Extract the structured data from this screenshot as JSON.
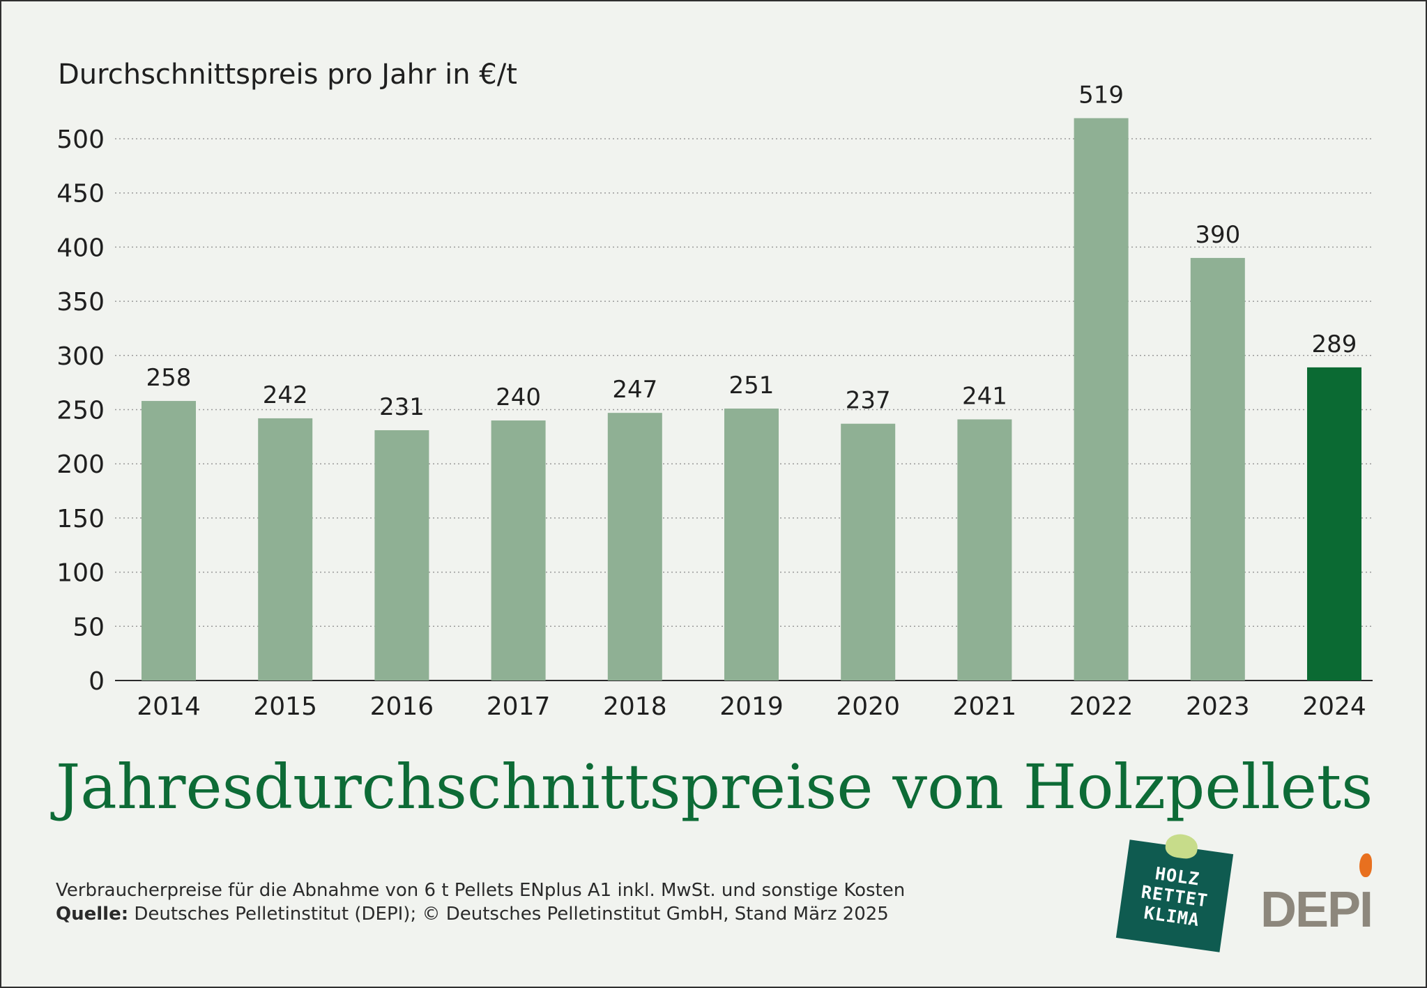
{
  "chart_data": {
    "type": "bar",
    "title": "Jahresdurchschnittspreise von Holzpellets",
    "ylabel": "Durchschnittspreis pro Jahr in €/t",
    "xlabel": "",
    "categories": [
      "2014",
      "2015",
      "2016",
      "2017",
      "2018",
      "2019",
      "2020",
      "2021",
      "2022",
      "2023",
      "2024"
    ],
    "values": [
      258,
      242,
      231,
      240,
      247,
      251,
      237,
      241,
      519,
      390,
      289
    ],
    "value_labels": [
      "258",
      "242",
      "231",
      "240",
      "247",
      "251",
      "237",
      "241",
      "519",
      "390",
      "289"
    ],
    "highlight_index": 10,
    "ylim": [
      0,
      520
    ],
    "yticks": [
      0,
      50,
      100,
      150,
      200,
      250,
      300,
      350,
      400,
      450,
      500
    ],
    "grid": "horizontal dotted",
    "colors": {
      "bar": "#8fb094",
      "highlight": "#0b6a33",
      "title": "#0d6b36"
    }
  },
  "footnote": "Verbraucherpreise für die Abnahme von 6 t Pellets ENplus A1 inkl. MwSt. und sonstige Kosten",
  "source": {
    "label": "Quelle:",
    "text": " Deutsches Pelletinstitut (DEPI); © Deutsches Pelletinstitut GmbH, Stand März 2025"
  },
  "logos": {
    "holz_rettet_klima": [
      "HOLZ",
      "RETTET",
      "KLIMA"
    ],
    "depi": "DEPI"
  }
}
